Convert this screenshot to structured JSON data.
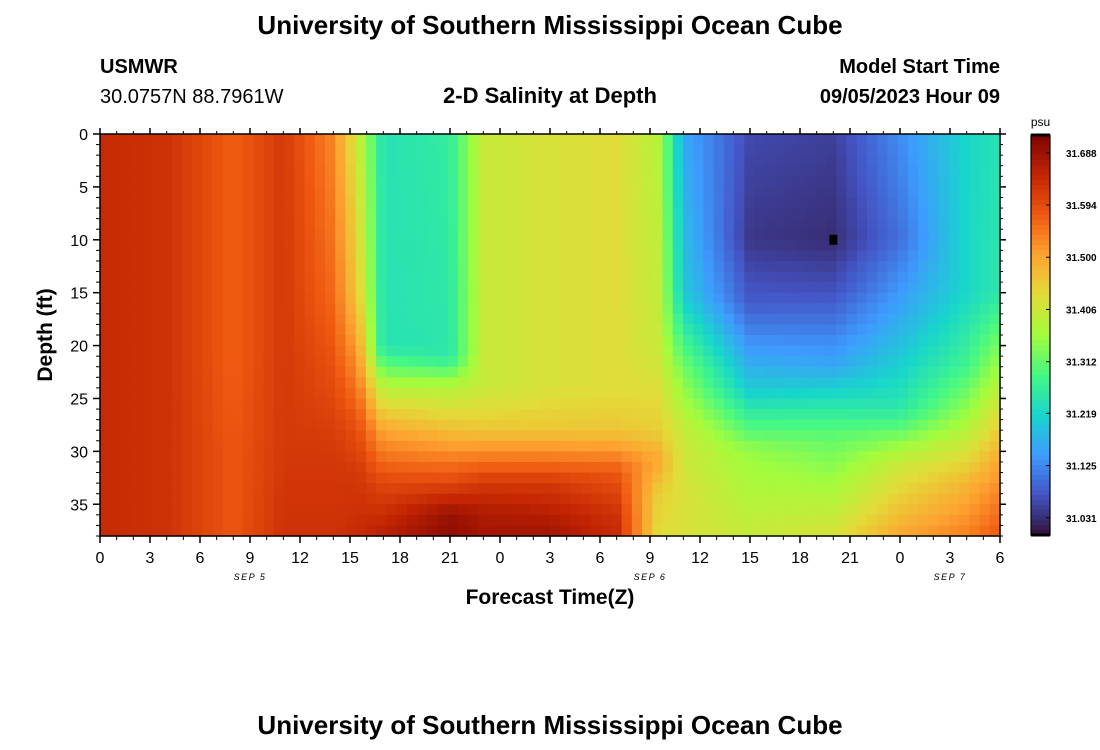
{
  "page": {
    "title": "University of Southern Mississippi Ocean Cube",
    "footer_title": "University of Southern Mississippi Ocean Cube",
    "station": "USMWR",
    "coords": "30.0757N  88.7961W",
    "product": "2-D Salinity at Depth",
    "start_label": "Model Start Time",
    "start_value": "09/05/2023 Hour 09"
  },
  "chart_data": {
    "type": "heatmap",
    "xlabel": "Forecast Time(Z)",
    "ylabel": "Depth (ft)",
    "x_ticks": [
      "0",
      "3",
      "6",
      "9",
      "12",
      "15",
      "18",
      "21",
      "0",
      "3",
      "6",
      "9",
      "12",
      "15",
      "18",
      "21",
      "0",
      "3",
      "6"
    ],
    "y_ticks": [
      "0",
      "5",
      "10",
      "15",
      "20",
      "25",
      "30",
      "35"
    ],
    "y_tick_values": [
      0,
      5,
      10,
      15,
      20,
      25,
      30,
      35
    ],
    "ylim": [
      0,
      38
    ],
    "x_hours_range": [
      0,
      54
    ],
    "date_labels": [
      {
        "text": "SEP 5",
        "hour": 9
      },
      {
        "text": "SEP 6",
        "hour": 33
      },
      {
        "text": "SEP 7",
        "hour": 51
      }
    ],
    "colorbar": {
      "unit": "psu",
      "labels": [
        "31.688",
        "31.594",
        "31.500",
        "31.406",
        "31.312",
        "31.219",
        "31.125",
        "31.031"
      ],
      "label_values": [
        31.688,
        31.594,
        31.5,
        31.406,
        31.312,
        31.219,
        31.125,
        31.031
      ],
      "range": [
        31.0,
        31.72
      ]
    },
    "colors": [
      "#30123b",
      "#4454c4",
      "#3e9bfe",
      "#18d6cb",
      "#46f884",
      "#a4fc3c",
      "#e2dc38",
      "#fea331",
      "#ef5911",
      "#c22402",
      "#7a0403"
    ],
    "salinity_profiles": [
      {
        "hour": 0,
        "depth": [
          0,
          20,
          30,
          38
        ],
        "sal": [
          31.64,
          31.64,
          31.64,
          31.64
        ]
      },
      {
        "hour": 4,
        "depth": [
          0,
          20,
          30,
          38
        ],
        "sal": [
          31.63,
          31.63,
          31.63,
          31.63
        ]
      },
      {
        "hour": 8,
        "depth": [
          0,
          20,
          30,
          38
        ],
        "sal": [
          31.57,
          31.57,
          31.58,
          31.58
        ]
      },
      {
        "hour": 11,
        "depth": [
          0,
          20,
          30,
          38
        ],
        "sal": [
          31.62,
          31.62,
          31.62,
          31.63
        ]
      },
      {
        "hour": 14,
        "depth": [
          0,
          15,
          25,
          30,
          38
        ],
        "sal": [
          31.53,
          31.56,
          31.6,
          31.62,
          31.63
        ]
      },
      {
        "hour": 15.5,
        "depth": [
          0,
          15,
          22,
          27,
          32,
          38
        ],
        "sal": [
          31.4,
          31.45,
          31.52,
          31.58,
          31.62,
          31.64
        ]
      },
      {
        "hour": 17,
        "depth": [
          0,
          20,
          24,
          28,
          33,
          38
        ],
        "sal": [
          31.24,
          31.24,
          31.38,
          31.5,
          31.6,
          31.66
        ]
      },
      {
        "hour": 21,
        "depth": [
          0,
          21,
          24,
          28,
          33,
          36,
          38
        ],
        "sal": [
          31.26,
          31.25,
          31.38,
          31.47,
          31.6,
          31.69,
          31.7
        ]
      },
      {
        "hour": 23,
        "depth": [
          0,
          18,
          24,
          28,
          33,
          36,
          38
        ],
        "sal": [
          31.4,
          31.4,
          31.4,
          31.46,
          31.62,
          31.67,
          31.68
        ]
      },
      {
        "hour": 27,
        "depth": [
          0,
          24,
          28,
          33,
          36,
          38
        ],
        "sal": [
          31.42,
          31.42,
          31.46,
          31.62,
          31.66,
          31.68
        ]
      },
      {
        "hour": 31,
        "depth": [
          0,
          24,
          28,
          32,
          36,
          38
        ],
        "sal": [
          31.43,
          31.43,
          31.46,
          31.58,
          31.63,
          31.64
        ]
      },
      {
        "hour": 33.5,
        "depth": [
          0,
          20,
          28,
          31,
          34,
          38
        ],
        "sal": [
          31.38,
          31.4,
          31.45,
          31.5,
          31.45,
          31.43
        ]
      },
      {
        "hour": 35,
        "depth": [
          0,
          15,
          22,
          28,
          34,
          38
        ],
        "sal": [
          31.16,
          31.2,
          31.32,
          31.4,
          31.42,
          31.42
        ]
      },
      {
        "hour": 39,
        "depth": [
          0,
          10,
          16,
          24,
          30,
          38
        ],
        "sal": [
          31.06,
          31.04,
          31.08,
          31.2,
          31.35,
          31.4
        ]
      },
      {
        "hour": 44,
        "depth": [
          0,
          10,
          15,
          22,
          28,
          38
        ],
        "sal": [
          31.05,
          31.03,
          31.07,
          31.16,
          31.3,
          31.42
        ]
      },
      {
        "hour": 48,
        "depth": [
          0,
          10,
          18,
          26,
          31,
          38
        ],
        "sal": [
          31.13,
          31.1,
          31.17,
          31.25,
          31.4,
          31.5
        ]
      },
      {
        "hour": 52,
        "depth": [
          0,
          15,
          22,
          28,
          33,
          38
        ],
        "sal": [
          31.22,
          31.22,
          31.28,
          31.38,
          31.48,
          31.54
        ]
      },
      {
        "hour": 54,
        "depth": [
          0,
          15,
          20,
          26,
          31,
          38
        ],
        "sal": [
          31.24,
          31.25,
          31.33,
          31.42,
          31.5,
          31.58
        ]
      }
    ],
    "max_marker": {
      "hour": 44,
      "depth": 10
    }
  }
}
